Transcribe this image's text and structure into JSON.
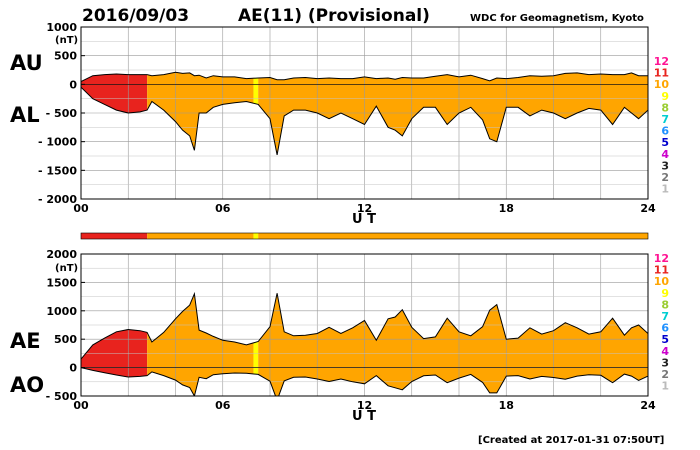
{
  "header": {
    "date": "2016/09/03",
    "index_title": "AE(11) (Provisional)",
    "source": "WDC for Geomagnetism, Kyoto"
  },
  "footer": {
    "created": "[Created at 2017-01-31 07:50UT]"
  },
  "station_scale": {
    "labels": [
      "12",
      "11",
      "10",
      "9",
      "8",
      "7",
      "6",
      "5",
      "4",
      "3",
      "2",
      "1"
    ],
    "colors": [
      "#ff1493",
      "#e8231e",
      "#ffa500",
      "#ffff00",
      "#9acd32",
      "#00ced1",
      "#1e90ff",
      "#0000cd",
      "#cc00cc",
      "#222222",
      "#777777",
      "#bbbbbb"
    ]
  },
  "chart_data": [
    {
      "type": "area",
      "panel": "AU/AL",
      "series_labels": [
        "AU",
        "AL"
      ],
      "unit": "(nT)",
      "xlabel": "U T",
      "xlim": [
        0,
        24
      ],
      "xticks": [
        0,
        6,
        12,
        18,
        24
      ],
      "xtick_labels": [
        "00",
        "06",
        "12",
        "18",
        "24"
      ],
      "ylim": [
        -2000,
        1000
      ],
      "yticks": [
        1000,
        500,
        0,
        -500,
        -1000,
        -1500,
        -2000
      ],
      "ytick_labels": [
        "1000",
        "500",
        "0",
        "- 500",
        "- 1000",
        "- 1500",
        "- 2000"
      ],
      "grid": true,
      "x": [
        0,
        0.5,
        1,
        1.5,
        2,
        2.5,
        2.8,
        3,
        3.5,
        4,
        4.3,
        4.6,
        4.8,
        5,
        5.3,
        5.6,
        6,
        6.5,
        7,
        7.5,
        8,
        8.3,
        8.6,
        9,
        9.5,
        10,
        10.5,
        11,
        11.5,
        12,
        12.5,
        13,
        13.3,
        13.6,
        14,
        14.5,
        15,
        15.5,
        16,
        16.5,
        17,
        17.3,
        17.6,
        18,
        18.5,
        19,
        19.5,
        20,
        20.5,
        21,
        21.5,
        22,
        22.5,
        23,
        23.3,
        23.6,
        24
      ],
      "au": [
        50,
        150,
        170,
        180,
        170,
        170,
        170,
        150,
        170,
        210,
        190,
        200,
        150,
        160,
        110,
        150,
        130,
        130,
        100,
        110,
        120,
        80,
        80,
        110,
        120,
        100,
        110,
        100,
        100,
        130,
        100,
        110,
        90,
        120,
        110,
        110,
        140,
        170,
        130,
        160,
        100,
        60,
        110,
        100,
        120,
        150,
        140,
        150,
        190,
        200,
        170,
        180,
        170,
        170,
        200,
        150,
        150
      ],
      "al": [
        -50,
        -250,
        -350,
        -450,
        -500,
        -480,
        -450,
        -300,
        -450,
        -650,
        -800,
        -900,
        -1150,
        -500,
        -500,
        -400,
        -350,
        -320,
        -300,
        -350,
        -600,
        -1230,
        -550,
        -450,
        -450,
        -500,
        -600,
        -500,
        -600,
        -700,
        -380,
        -750,
        -800,
        -900,
        -600,
        -400,
        -400,
        -700,
        -500,
        -400,
        -620,
        -950,
        -1000,
        -400,
        -400,
        -550,
        -450,
        -500,
        -600,
        -500,
        -420,
        -450,
        -700,
        -400,
        -500,
        -600,
        -450
      ],
      "activity_levels": {
        "x_breaks": [
          0,
          2.8,
          7.3,
          7.5,
          24
        ],
        "level": [
          11,
          10,
          9,
          10
        ]
      }
    },
    {
      "type": "area",
      "panel": "AE/AO",
      "series_labels": [
        "AE",
        "AO"
      ],
      "unit": "(nT)",
      "xlabel": "U T",
      "xlim": [
        0,
        24
      ],
      "xticks": [
        0,
        6,
        12,
        18,
        24
      ],
      "xtick_labels": [
        "00",
        "06",
        "12",
        "18",
        "24"
      ],
      "ylim": [
        -500,
        2000
      ],
      "yticks": [
        2000,
        1500,
        1000,
        500,
        0,
        -500
      ],
      "ytick_labels": [
        "2000",
        "1500",
        "1000",
        "500",
        "0",
        "- 500"
      ],
      "grid": true,
      "x": [
        0,
        0.5,
        1,
        1.5,
        2,
        2.5,
        2.8,
        3,
        3.5,
        4,
        4.3,
        4.6,
        4.8,
        5,
        5.3,
        5.6,
        6,
        6.5,
        7,
        7.5,
        8,
        8.3,
        8.6,
        9,
        9.5,
        10,
        10.5,
        11,
        11.5,
        12,
        12.5,
        13,
        13.3,
        13.6,
        14,
        14.5,
        15,
        15.5,
        16,
        16.5,
        17,
        17.3,
        17.6,
        18,
        18.5,
        19,
        19.5,
        20,
        20.5,
        21,
        21.5,
        22,
        22.5,
        23,
        23.3,
        23.6,
        24
      ],
      "ae": [
        150,
        400,
        520,
        630,
        670,
        650,
        620,
        450,
        620,
        860,
        990,
        1100,
        1300,
        660,
        610,
        550,
        480,
        450,
        400,
        460,
        720,
        1310,
        630,
        560,
        570,
        600,
        710,
        600,
        700,
        830,
        480,
        860,
        890,
        1020,
        710,
        510,
        540,
        870,
        630,
        560,
        720,
        1010,
        1110,
        500,
        520,
        700,
        590,
        650,
        790,
        700,
        590,
        630,
        870,
        570,
        700,
        750,
        600
      ],
      "ao": [
        0,
        -50,
        -90,
        -130,
        -165,
        -155,
        -140,
        -75,
        -140,
        -220,
        -305,
        -350,
        -500,
        -170,
        -195,
        -125,
        -110,
        -95,
        -100,
        -120,
        -240,
        -575,
        -235,
        -170,
        -165,
        -200,
        -245,
        -200,
        -250,
        -285,
        -140,
        -320,
        -355,
        -390,
        -245,
        -145,
        -130,
        -265,
        -185,
        -120,
        -260,
        -445,
        -445,
        -150,
        -140,
        -200,
        -155,
        -175,
        -205,
        -150,
        -125,
        -135,
        -265,
        -115,
        -150,
        -225,
        -150
      ],
      "activity_levels": {
        "x_breaks": [
          0,
          2.8,
          7.3,
          7.5,
          24
        ],
        "level": [
          11,
          10,
          9,
          10
        ]
      }
    }
  ]
}
